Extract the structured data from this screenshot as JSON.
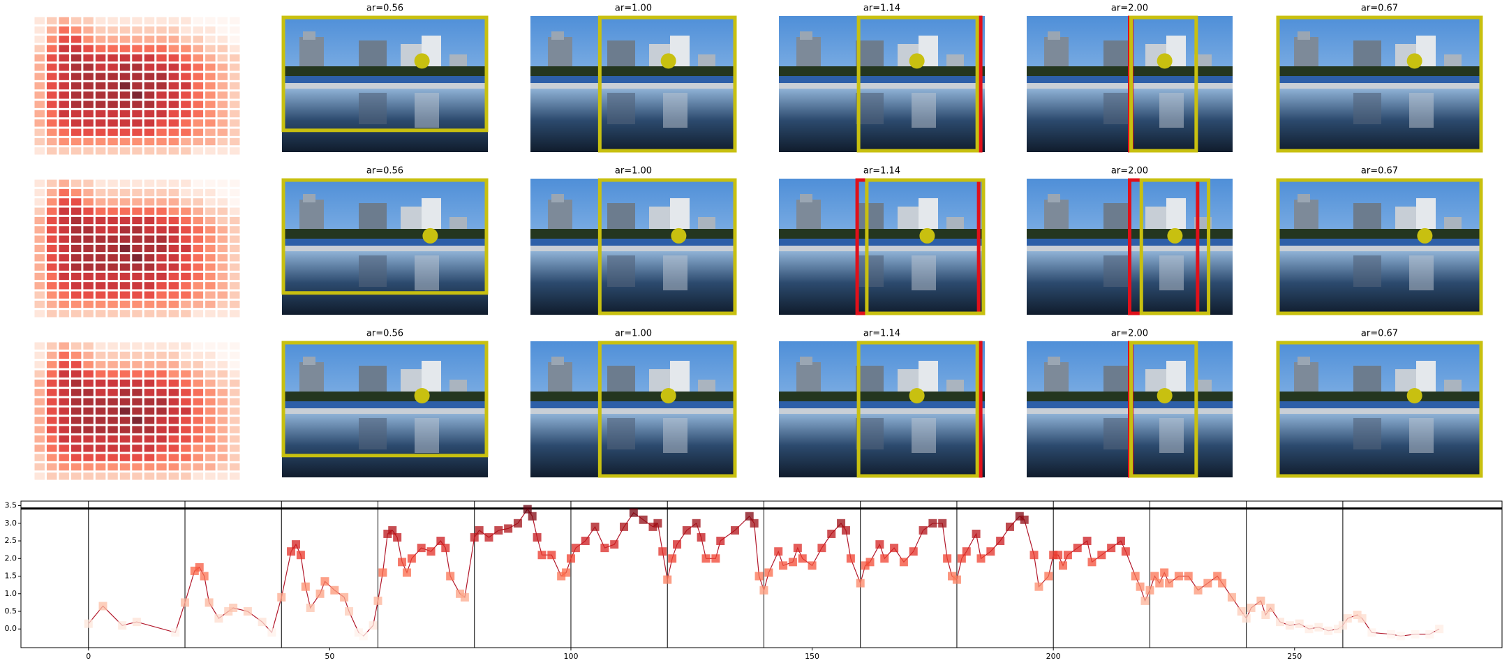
{
  "chart_data": {
    "type": "line",
    "panel_titles": [
      "ar=0.56",
      "ar=1.00",
      "ar=1.14",
      "ar=2.00",
      "ar=0.67"
    ],
    "heatmap": [
      [
        1,
        2,
        3,
        2,
        2,
        1,
        1,
        1,
        1,
        1,
        1,
        1,
        1,
        0,
        0,
        0,
        0
      ],
      [
        1,
        3,
        5,
        4,
        3,
        2,
        2,
        2,
        2,
        2,
        2,
        2,
        1,
        1,
        1,
        0,
        0
      ],
      [
        1,
        4,
        6,
        6,
        4,
        3,
        3,
        3,
        3,
        3,
        3,
        3,
        2,
        2,
        1,
        1,
        0
      ],
      [
        2,
        5,
        7,
        7,
        6,
        5,
        5,
        5,
        5,
        5,
        5,
        4,
        4,
        3,
        2,
        2,
        1
      ],
      [
        3,
        6,
        7,
        8,
        7,
        7,
        7,
        7,
        7,
        7,
        6,
        6,
        5,
        4,
        3,
        2,
        2
      ],
      [
        3,
        6,
        7,
        8,
        8,
        7,
        7,
        8,
        8,
        7,
        7,
        7,
        6,
        5,
        4,
        3,
        2
      ],
      [
        3,
        6,
        7,
        8,
        8,
        8,
        8,
        8,
        8,
        8,
        8,
        7,
        6,
        5,
        4,
        3,
        2
      ],
      [
        3,
        6,
        7,
        8,
        8,
        8,
        8,
        9,
        8,
        8,
        8,
        7,
        7,
        5,
        4,
        3,
        2
      ],
      [
        3,
        6,
        7,
        8,
        8,
        8,
        8,
        8,
        9,
        8,
        7,
        7,
        6,
        5,
        4,
        3,
        2
      ],
      [
        3,
        6,
        7,
        8,
        8,
        8,
        8,
        8,
        8,
        8,
        7,
        7,
        6,
        5,
        4,
        3,
        2
      ],
      [
        3,
        5,
        7,
        7,
        7,
        7,
        7,
        7,
        7,
        7,
        7,
        6,
        6,
        5,
        4,
        3,
        2
      ],
      [
        3,
        5,
        6,
        7,
        7,
        7,
        7,
        7,
        7,
        7,
        6,
        6,
        5,
        4,
        4,
        3,
        2
      ],
      [
        2,
        4,
        5,
        6,
        6,
        6,
        6,
        6,
        6,
        6,
        5,
        5,
        5,
        4,
        3,
        3,
        2
      ],
      [
        2,
        3,
        4,
        4,
        4,
        4,
        4,
        4,
        4,
        4,
        4,
        4,
        3,
        3,
        3,
        2,
        2
      ],
      [
        1,
        2,
        2,
        2,
        2,
        2,
        2,
        2,
        2,
        2,
        2,
        2,
        2,
        1,
        1,
        1,
        1
      ]
    ],
    "heatmap_range": [
      0,
      9
    ],
    "colormap": [
      "#fff5f0",
      "#fee0d2",
      "#fcbba1",
      "#fc9272",
      "#fb6a4a",
      "#ef3b2c",
      "#cb181d",
      "#a50f15",
      "#67000d"
    ],
    "x": [
      0,
      3,
      7,
      10,
      18,
      20,
      22,
      23,
      24,
      25,
      27,
      29,
      30,
      33,
      36,
      38,
      40,
      42,
      43,
      44,
      45,
      46,
      48,
      49,
      51,
      53,
      54,
      56,
      57,
      59,
      60,
      61,
      62,
      63,
      64,
      65,
      66,
      67,
      69,
      71,
      73,
      74,
      75,
      77,
      78,
      80,
      81,
      83,
      85,
      87,
      89,
      91,
      92,
      93,
      94,
      96,
      98,
      99,
      100,
      101,
      103,
      105,
      107,
      109,
      111,
      113,
      115,
      117,
      118,
      119,
      120,
      121,
      122,
      124,
      126,
      127,
      128,
      130,
      131,
      134,
      137,
      138,
      139,
      140,
      141,
      143,
      144,
      146,
      147,
      148,
      150,
      152,
      154,
      156,
      157,
      158,
      160,
      161,
      162,
      164,
      165,
      167,
      169,
      171,
      173,
      175,
      177,
      178,
      179,
      180,
      181,
      182,
      184,
      185,
      187,
      189,
      191,
      193,
      194,
      196,
      197,
      199,
      200,
      201,
      202,
      203,
      205,
      207,
      208,
      210,
      212,
      214,
      215,
      217,
      218,
      219,
      220,
      221,
      222,
      223,
      224,
      226,
      228,
      230,
      232,
      234,
      235,
      237,
      239,
      240,
      241,
      243,
      244,
      245,
      247,
      249,
      251,
      253,
      255,
      257,
      259,
      260,
      261,
      263,
      264,
      266,
      270,
      272,
      275,
      278,
      280
    ],
    "values": [
      0.15,
      0.65,
      0.1,
      0.2,
      -0.1,
      0.75,
      1.65,
      1.75,
      1.5,
      0.75,
      0.3,
      0.5,
      0.6,
      0.5,
      0.2,
      -0.1,
      0.9,
      2.2,
      2.4,
      2.1,
      1.2,
      0.6,
      1.0,
      1.35,
      1.1,
      0.9,
      0.5,
      -0.1,
      -0.2,
      0.1,
      0.8,
      1.6,
      2.7,
      2.8,
      2.6,
      1.9,
      1.6,
      2.0,
      2.3,
      2.2,
      2.5,
      2.3,
      1.5,
      1.0,
      0.9,
      2.6,
      2.8,
      2.6,
      2.8,
      2.85,
      3.0,
      3.4,
      3.2,
      2.6,
      2.1,
      2.1,
      1.5,
      1.6,
      2.0,
      2.3,
      2.5,
      2.9,
      2.3,
      2.4,
      2.9,
      3.3,
      3.1,
      2.9,
      3.0,
      2.2,
      1.4,
      2.0,
      2.4,
      2.8,
      3.0,
      2.6,
      2.0,
      2.0,
      2.5,
      2.8,
      3.2,
      3.0,
      1.5,
      1.1,
      1.6,
      2.2,
      1.8,
      1.9,
      2.3,
      2.0,
      1.8,
      2.3,
      2.7,
      3.0,
      2.8,
      2.0,
      1.3,
      1.8,
      1.9,
      2.4,
      2.0,
      2.3,
      1.9,
      2.2,
      2.8,
      3.0,
      3.0,
      2.0,
      1.5,
      1.4,
      2.0,
      2.2,
      2.7,
      2.0,
      2.2,
      2.5,
      2.9,
      3.2,
      3.1,
      2.1,
      1.2,
      1.5,
      2.1,
      2.1,
      1.8,
      2.1,
      2.3,
      2.5,
      1.9,
      2.1,
      2.3,
      2.5,
      2.2,
      1.5,
      1.2,
      0.8,
      1.1,
      1.5,
      1.3,
      1.6,
      1.3,
      1.5,
      1.5,
      1.1,
      1.3,
      1.5,
      1.3,
      0.9,
      0.5,
      0.3,
      0.6,
      0.8,
      0.4,
      0.6,
      0.2,
      0.1,
      0.15,
      0.0,
      0.05,
      -0.05,
      0.0,
      0.1,
      0.3,
      0.4,
      0.3,
      -0.1,
      -0.15,
      -0.2,
      -0.15,
      -0.15,
      0.0
    ],
    "color_range": [
      -0.2,
      3.4
    ],
    "line_color": "#b2182b",
    "xlim": [
      -14,
      293
    ],
    "xticks": [
      0,
      50,
      100,
      150,
      200,
      250
    ],
    "ylim": [
      -0.53,
      3.63
    ],
    "yticks": [
      {
        "value": 0,
        "label": "0.0"
      },
      {
        "value": 0.5,
        "label": "0.5"
      },
      {
        "value": 1,
        "label": "1.0"
      },
      {
        "value": 1.5,
        "label": "1.5"
      },
      {
        "value": 2,
        "label": "2.0"
      },
      {
        "value": 2.5,
        "label": "2.5"
      },
      {
        "value": 3,
        "label": "3.0"
      },
      {
        "value": 3.5,
        "label": "3.5"
      }
    ],
    "vlines": [
      0,
      20,
      40,
      60,
      80,
      100,
      120,
      140,
      160,
      180,
      200,
      220,
      240,
      260
    ],
    "hline": 3.42
  }
}
